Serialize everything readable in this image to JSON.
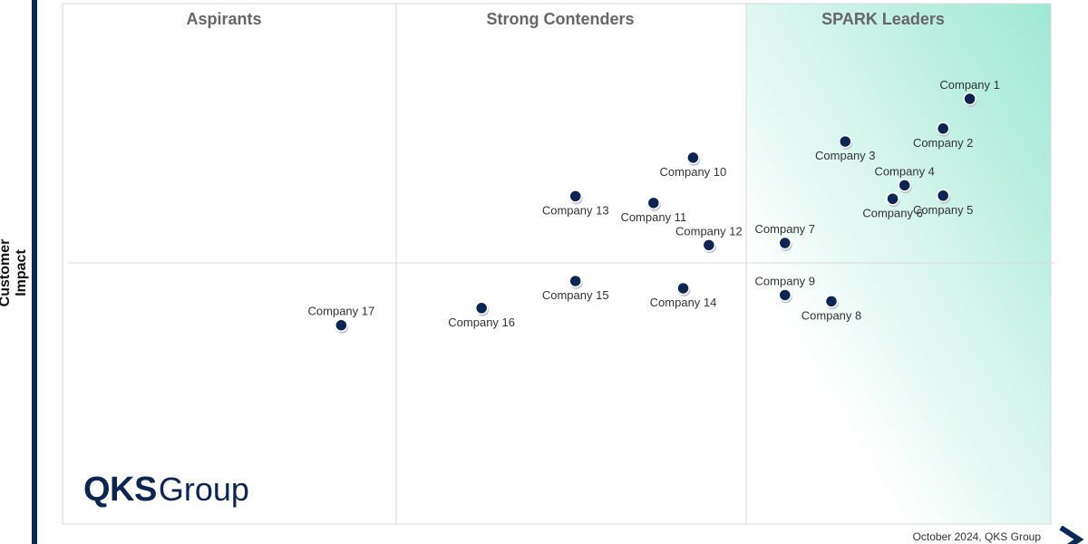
{
  "quadrant_titles": {
    "aspirants": "Aspirants",
    "strong_contenders": "Strong Contenders",
    "leaders": "SPARK Leaders"
  },
  "y_axis_label": "Customer Impact",
  "logo": {
    "bold": "QKS",
    "light": "Group"
  },
  "footer": "October 2024, QKS Group",
  "colors": {
    "point": "#0c2551",
    "axis": "#0a2a55",
    "leader_gradient_start": "#9ee8d3",
    "leader_gradient_end": "#ffffff",
    "grid": "#d9d9d9"
  },
  "chart_data": {
    "type": "scatter",
    "title": "",
    "xlabel": "",
    "ylabel": "Customer Impact",
    "xlim": [
      0,
      1
    ],
    "ylim": [
      0,
      1
    ],
    "quadrants": [
      "Aspirants",
      "Strong Contenders",
      "SPARK Leaders"
    ],
    "points": [
      {
        "name": "Company 1",
        "x": 0.918,
        "y": 0.817,
        "label_pos": "above"
      },
      {
        "name": "Company 2",
        "x": 0.891,
        "y": 0.76,
        "label_pos": "below"
      },
      {
        "name": "Company 3",
        "x": 0.792,
        "y": 0.735,
        "label_pos": "below"
      },
      {
        "name": "Company 4",
        "x": 0.852,
        "y": 0.651,
        "label_pos": "above"
      },
      {
        "name": "Company 5",
        "x": 0.891,
        "y": 0.631,
        "label_pos": "below"
      },
      {
        "name": "Company 6",
        "x": 0.84,
        "y": 0.625,
        "label_pos": "below"
      },
      {
        "name": "Company 7",
        "x": 0.731,
        "y": 0.54,
        "label_pos": "above"
      },
      {
        "name": "Company 8",
        "x": 0.778,
        "y": 0.428,
        "label_pos": "below"
      },
      {
        "name": "Company 9",
        "x": 0.731,
        "y": 0.44,
        "label_pos": "above"
      },
      {
        "name": "Company 10",
        "x": 0.638,
        "y": 0.704,
        "label_pos": "below"
      },
      {
        "name": "Company 11",
        "x": 0.598,
        "y": 0.617,
        "label_pos": "below"
      },
      {
        "name": "Company 12",
        "x": 0.654,
        "y": 0.536,
        "label_pos": "above"
      },
      {
        "name": "Company 13",
        "x": 0.519,
        "y": 0.63,
        "label_pos": "below"
      },
      {
        "name": "Company 14",
        "x": 0.628,
        "y": 0.453,
        "label_pos": "below"
      },
      {
        "name": "Company 15",
        "x": 0.519,
        "y": 0.467,
        "label_pos": "below"
      },
      {
        "name": "Company 16",
        "x": 0.424,
        "y": 0.415,
        "label_pos": "below"
      },
      {
        "name": "Company 17",
        "x": 0.282,
        "y": 0.382,
        "label_pos": "above"
      }
    ]
  }
}
